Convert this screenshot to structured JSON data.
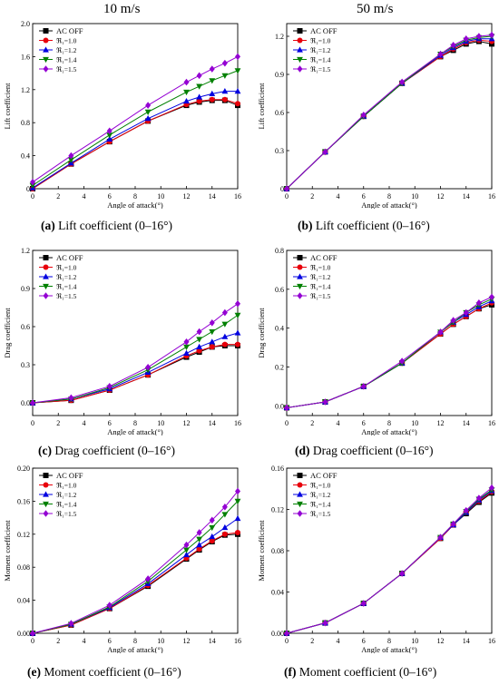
{
  "column_titles": [
    "10 m/s",
    "50 m/s"
  ],
  "captions": [
    {
      "letter": "(a)",
      "text": " Lift coefficient (0–16°)"
    },
    {
      "letter": "(b)",
      "text": " Lift coefficient (0–16°)"
    },
    {
      "letter": "(c)",
      "text": " Drag coefficient (0–16°)"
    },
    {
      "letter": "(d)",
      "text": " Drag coefficient (0–16°)"
    },
    {
      "letter": "(e)",
      "text": " Moment coefficient (0–16°)"
    },
    {
      "letter": "(f)",
      "text": " Moment coefficient (0–16°)"
    }
  ],
  "series_style": [
    {
      "name": "AC OFF",
      "color": "#000000",
      "marker": "square"
    },
    {
      "name": "ℜ₁=1.0",
      "color": "#e8000b",
      "marker": "circle"
    },
    {
      "name": "ℜ₁=1.2",
      "color": "#0000e0",
      "marker": "triangle-up"
    },
    {
      "name": "ℜ₁=1.4",
      "color": "#008000",
      "marker": "triangle-down"
    },
    {
      "name": "ℜ₁=1.5",
      "color": "#9400d3",
      "marker": "diamond"
    }
  ],
  "chart_data": [
    {
      "type": "line",
      "xlabel": "Angle of attack(°)",
      "ylabel": "Lift coefficient",
      "xlim": [
        0,
        16
      ],
      "ylim": [
        0,
        2.0
      ],
      "xticks": [
        0,
        2,
        4,
        6,
        8,
        10,
        12,
        14,
        16
      ],
      "yticks": [
        0.0,
        0.4,
        0.8,
        1.2,
        1.6,
        2.0
      ],
      "ytick_labels": [
        "0",
        "0.4",
        "0.8",
        "1.2",
        "1.6",
        "2.0"
      ],
      "legend": "top-left",
      "x": [
        0,
        3,
        6,
        9,
        12,
        13,
        14,
        15,
        16
      ],
      "series": [
        {
          "name": "AC OFF",
          "values": [
            0.0,
            0.3,
            0.57,
            0.82,
            1.01,
            1.05,
            1.07,
            1.07,
            1.01
          ]
        },
        {
          "name": "ℜ₁=1.0",
          "values": [
            0.0,
            0.3,
            0.57,
            0.82,
            1.02,
            1.06,
            1.08,
            1.08,
            1.03
          ]
        },
        {
          "name": "ℜ₁=1.2",
          "values": [
            0.01,
            0.31,
            0.6,
            0.85,
            1.06,
            1.11,
            1.15,
            1.18,
            1.18
          ]
        },
        {
          "name": "ℜ₁=1.4",
          "values": [
            0.04,
            0.35,
            0.65,
            0.93,
            1.17,
            1.24,
            1.31,
            1.37,
            1.43
          ]
        },
        {
          "name": "ℜ₁=1.5",
          "values": [
            0.08,
            0.4,
            0.7,
            1.01,
            1.29,
            1.37,
            1.45,
            1.52,
            1.6
          ]
        }
      ]
    },
    {
      "type": "line",
      "xlabel": "Angle of attack(°)",
      "ylabel": "Lift coefficient",
      "xlim": [
        0,
        16
      ],
      "ylim": [
        0,
        1.3
      ],
      "xticks": [
        0,
        2,
        4,
        6,
        8,
        10,
        12,
        14,
        16
      ],
      "yticks": [
        0.0,
        0.3,
        0.6,
        0.9,
        1.2
      ],
      "ytick_labels": [
        "0",
        "0.3",
        "0.6",
        "0.9",
        "1.2"
      ],
      "legend": "top-left",
      "x": [
        0,
        3,
        6,
        9,
        12,
        13,
        14,
        15,
        16
      ],
      "series": [
        {
          "name": "AC OFF",
          "values": [
            0.0,
            0.29,
            0.57,
            0.83,
            1.04,
            1.09,
            1.14,
            1.16,
            1.14
          ]
        },
        {
          "name": "ℜ₁=1.0",
          "values": [
            0.0,
            0.29,
            0.57,
            0.83,
            1.04,
            1.1,
            1.15,
            1.17,
            1.16
          ]
        },
        {
          "name": "ℜ₁=1.2",
          "values": [
            0.0,
            0.29,
            0.57,
            0.83,
            1.05,
            1.11,
            1.16,
            1.18,
            1.18
          ]
        },
        {
          "name": "ℜ₁=1.4",
          "values": [
            0.0,
            0.29,
            0.57,
            0.83,
            1.06,
            1.12,
            1.17,
            1.19,
            1.2
          ]
        },
        {
          "name": "ℜ₁=1.5",
          "values": [
            0.0,
            0.29,
            0.58,
            0.84,
            1.06,
            1.13,
            1.18,
            1.2,
            1.21
          ]
        }
      ]
    },
    {
      "type": "line",
      "xlabel": "Angle of attack(°)",
      "ylabel": "Drag coefficient",
      "xlim": [
        0,
        16
      ],
      "ylim": [
        -0.1,
        1.2
      ],
      "xticks": [
        0,
        2,
        4,
        6,
        8,
        10,
        12,
        14,
        16
      ],
      "yticks": [
        0.0,
        0.3,
        0.6,
        0.9,
        1.2
      ],
      "ytick_labels": [
        "0.0",
        "0.3",
        "0.6",
        "0.9",
        "1.2"
      ],
      "legend": "top-left",
      "x": [
        0,
        3,
        6,
        9,
        12,
        13,
        14,
        15,
        16
      ],
      "series": [
        {
          "name": "AC OFF",
          "values": [
            0.0,
            0.02,
            0.1,
            0.22,
            0.36,
            0.4,
            0.44,
            0.45,
            0.45
          ]
        },
        {
          "name": "ℜ₁=1.0",
          "values": [
            0.0,
            0.02,
            0.1,
            0.22,
            0.37,
            0.41,
            0.44,
            0.46,
            0.46
          ]
        },
        {
          "name": "ℜ₁=1.2",
          "values": [
            0.0,
            0.03,
            0.11,
            0.24,
            0.39,
            0.44,
            0.48,
            0.52,
            0.55
          ]
        },
        {
          "name": "ℜ₁=1.4",
          "values": [
            0.0,
            0.03,
            0.12,
            0.26,
            0.44,
            0.5,
            0.56,
            0.62,
            0.69
          ]
        },
        {
          "name": "ℜ₁=1.5",
          "values": [
            0.0,
            0.04,
            0.13,
            0.28,
            0.48,
            0.56,
            0.63,
            0.71,
            0.78
          ]
        }
      ]
    },
    {
      "type": "line",
      "xlabel": "Angle of attack(°)",
      "ylabel": "Drag coefficient",
      "xlim": [
        0,
        16
      ],
      "ylim": [
        -0.05,
        0.8
      ],
      "xticks": [
        0,
        2,
        4,
        6,
        8,
        10,
        12,
        14,
        16
      ],
      "yticks": [
        0.0,
        0.2,
        0.4,
        0.6,
        0.8
      ],
      "ytick_labels": [
        "0.0",
        "0.2",
        "0.4",
        "0.6",
        "0.8"
      ],
      "legend": "top-left",
      "x": [
        0,
        3,
        6,
        9,
        12,
        13,
        14,
        15,
        16
      ],
      "series": [
        {
          "name": "AC OFF",
          "values": [
            -0.01,
            0.02,
            0.1,
            0.22,
            0.37,
            0.42,
            0.46,
            0.5,
            0.52
          ]
        },
        {
          "name": "ℜ₁=1.0",
          "values": [
            -0.01,
            0.02,
            0.1,
            0.22,
            0.37,
            0.42,
            0.46,
            0.5,
            0.53
          ]
        },
        {
          "name": "ℜ₁=1.2",
          "values": [
            -0.01,
            0.02,
            0.1,
            0.22,
            0.38,
            0.43,
            0.47,
            0.51,
            0.54
          ]
        },
        {
          "name": "ℜ₁=1.4",
          "values": [
            -0.01,
            0.02,
            0.1,
            0.22,
            0.38,
            0.43,
            0.48,
            0.52,
            0.55
          ]
        },
        {
          "name": "ℜ₁=1.5",
          "values": [
            -0.01,
            0.02,
            0.1,
            0.23,
            0.38,
            0.44,
            0.48,
            0.53,
            0.56
          ]
        }
      ]
    },
    {
      "type": "line",
      "xlabel": "Angle of attack(°)",
      "ylabel": "Moment coefficient",
      "xlim": [
        0,
        16
      ],
      "ylim": [
        0,
        0.2
      ],
      "xticks": [
        0,
        2,
        4,
        6,
        8,
        10,
        12,
        14,
        16
      ],
      "yticks": [
        0.0,
        0.04,
        0.08,
        0.12,
        0.16,
        0.2
      ],
      "ytick_labels": [
        "0.00",
        "0.04",
        "0.08",
        "0.12",
        "0.16",
        "0.20"
      ],
      "legend": "top-left",
      "x": [
        0,
        3,
        6,
        9,
        12,
        13,
        14,
        15,
        16
      ],
      "series": [
        {
          "name": "AC OFF",
          "values": [
            0.0,
            0.01,
            0.03,
            0.057,
            0.09,
            0.101,
            0.111,
            0.119,
            0.12
          ]
        },
        {
          "name": "ℜ₁=1.0",
          "values": [
            0.0,
            0.01,
            0.03,
            0.058,
            0.091,
            0.102,
            0.112,
            0.12,
            0.122
          ]
        },
        {
          "name": "ℜ₁=1.2",
          "values": [
            0.0,
            0.011,
            0.031,
            0.06,
            0.095,
            0.107,
            0.117,
            0.128,
            0.139
          ]
        },
        {
          "name": "ℜ₁=1.4",
          "values": [
            0.0,
            0.011,
            0.032,
            0.063,
            0.101,
            0.114,
            0.128,
            0.144,
            0.16
          ]
        },
        {
          "name": "ℜ₁=1.5",
          "values": [
            0.0,
            0.012,
            0.034,
            0.066,
            0.107,
            0.122,
            0.137,
            0.153,
            0.172
          ]
        }
      ]
    },
    {
      "type": "line",
      "xlabel": "Angle of attack(°)",
      "ylabel": "Moment coefficient",
      "xlim": [
        0,
        16
      ],
      "ylim": [
        0,
        0.16
      ],
      "xticks": [
        0,
        2,
        4,
        6,
        8,
        10,
        12,
        14,
        16
      ],
      "yticks": [
        0.0,
        0.04,
        0.08,
        0.12,
        0.16
      ],
      "ytick_labels": [
        "0.00",
        "0.04",
        "0.08",
        "0.12",
        "0.16"
      ],
      "legend": "top-left",
      "x": [
        0,
        3,
        6,
        9,
        12,
        13,
        14,
        15,
        16
      ],
      "series": [
        {
          "name": "AC OFF",
          "values": [
            0.0,
            0.01,
            0.029,
            0.058,
            0.092,
            0.105,
            0.116,
            0.127,
            0.136
          ]
        },
        {
          "name": "ℜ₁=1.0",
          "values": [
            0.0,
            0.01,
            0.029,
            0.058,
            0.092,
            0.105,
            0.117,
            0.128,
            0.137
          ]
        },
        {
          "name": "ℜ₁=1.2",
          "values": [
            0.0,
            0.01,
            0.029,
            0.058,
            0.093,
            0.105,
            0.117,
            0.129,
            0.138
          ]
        },
        {
          "name": "ℜ₁=1.4",
          "values": [
            0.0,
            0.01,
            0.029,
            0.058,
            0.093,
            0.106,
            0.118,
            0.13,
            0.139
          ]
        },
        {
          "name": "ℜ₁=1.5",
          "values": [
            0.0,
            0.01,
            0.029,
            0.058,
            0.093,
            0.106,
            0.119,
            0.131,
            0.141
          ]
        }
      ]
    }
  ]
}
